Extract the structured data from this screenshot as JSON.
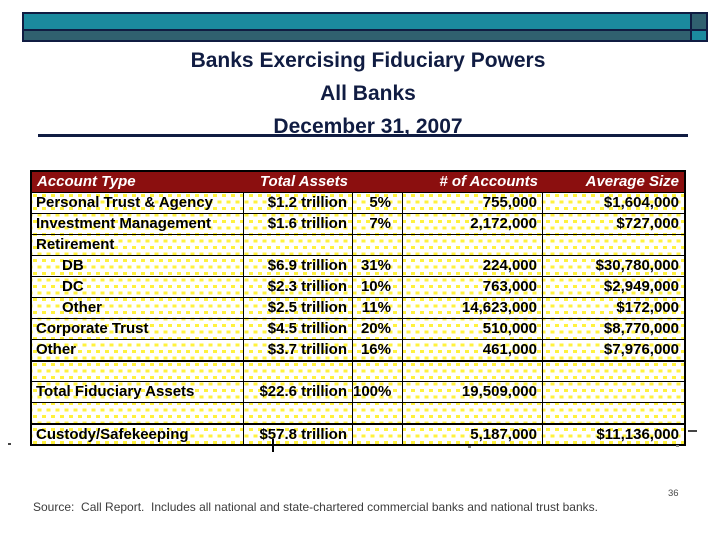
{
  "title": {
    "line1": "Banks Exercising Fiduciary Powers",
    "line2": "All Banks",
    "line3": "December 31, 2007"
  },
  "table": {
    "headers": {
      "account_type": "Account Type",
      "total_assets": "Total Assets",
      "pct": "",
      "num_accounts": "# of Accounts",
      "avg_size": "Average Size"
    },
    "rows": [
      {
        "label": "Personal Trust & Agency",
        "assets": "$1.2 trillion",
        "pct": "5%",
        "accounts": "755,000",
        "avg": "$1,604,000"
      },
      {
        "label": "Investment Management",
        "assets": "$1.6 trillion",
        "pct": "7%",
        "accounts": "2,172,000",
        "avg": "$727,000"
      },
      {
        "label": "Retirement",
        "assets": "",
        "pct": "",
        "accounts": "",
        "avg": ""
      },
      {
        "label": "DB",
        "assets": "$6.9 trillion",
        "pct": "31%",
        "accounts": "224,000",
        "avg": "$30,780,000"
      },
      {
        "label": "DC",
        "assets": "$2.3 trillion",
        "pct": "10%",
        "accounts": "763,000",
        "avg": "$2,949,000"
      },
      {
        "label": "Other",
        "assets": "$2.5 trillion",
        "pct": "11%",
        "accounts": "14,623,000",
        "avg": "$172,000"
      },
      {
        "label": "Corporate Trust",
        "assets": "$4.5 trillion",
        "pct": "20%",
        "accounts": "510,000",
        "avg": "$8,770,000"
      },
      {
        "label": "Other",
        "assets": "$3.7 trillion",
        "pct": "16%",
        "accounts": "461,000",
        "avg": "$7,976,000"
      },
      {
        "label": "",
        "assets": "",
        "pct": "",
        "accounts": "",
        "avg": ""
      },
      {
        "label": "Total Fiduciary Assets",
        "assets": "$22.6 trillion",
        "pct": "100%",
        "accounts": "19,509,000",
        "avg": ""
      },
      {
        "label": "",
        "assets": "",
        "pct": "",
        "accounts": "",
        "avg": ""
      },
      {
        "label": "Custody/Safekeeping",
        "assets": "$57.8 trillion",
        "pct": "",
        "accounts": "5,187,000",
        "avg": "$11,136,000"
      }
    ]
  },
  "footer": {
    "source": "Source:  Call Report.  Includes all national and state-chartered commercial banks and national trust banks.",
    "page_number": "36"
  },
  "colors": {
    "banner_teal": "#1b8a9e",
    "banner_slate": "#30606f",
    "navy": "#101c42",
    "header_maroon": "#8b0f0f",
    "dot_yellow": "#fff23d"
  }
}
